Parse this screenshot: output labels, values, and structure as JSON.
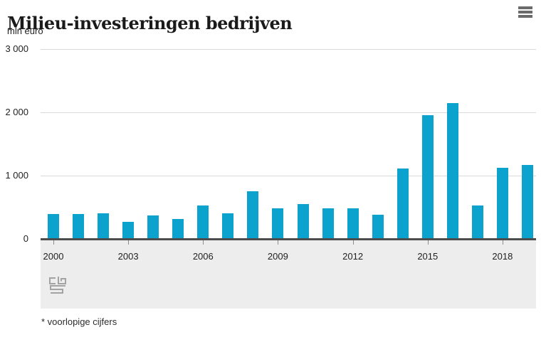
{
  "title": "Milieu-investeringen bedrijven",
  "unit_label": "mln euro",
  "footnote": "* voorlopige cijfers",
  "menu": {
    "icon": "hamburger-menu-icon"
  },
  "logo": {
    "icon": "cbs-logo"
  },
  "colors": {
    "bar": "#0ba3cd",
    "axis": "#4d4d4d",
    "grid": "#d9d9d9",
    "band_bg": "#ededed",
    "menu_icon": "#6b6b6b",
    "logo_gray": "#a3a3a3"
  },
  "chart_data": {
    "type": "bar",
    "title": "Milieu-investeringen bedrijven",
    "ylabel": "mln euro",
    "x": [
      2000,
      2001,
      2002,
      2003,
      2004,
      2005,
      2006,
      2007,
      2008,
      2009,
      2010,
      2011,
      2012,
      2013,
      2014,
      2015,
      2016,
      2017,
      2018,
      2019
    ],
    "values": [
      390,
      395,
      410,
      270,
      375,
      320,
      530,
      410,
      750,
      480,
      555,
      480,
      485,
      385,
      1110,
      1960,
      2150,
      530,
      1120,
      1170
    ],
    "ylim": [
      0,
      3000
    ],
    "yticks": [
      0,
      1000,
      2000,
      3000
    ],
    "ytick_labels": [
      "0",
      "1 000",
      "2 000",
      "3 000"
    ],
    "xtick_years": [
      2000,
      2003,
      2006,
      2009,
      2012,
      2015,
      2018
    ],
    "xtick_labels": [
      "2000",
      "2003",
      "2006",
      "2009",
      "2012",
      "2015",
      "2018"
    ],
    "grid": true,
    "legend": false
  }
}
